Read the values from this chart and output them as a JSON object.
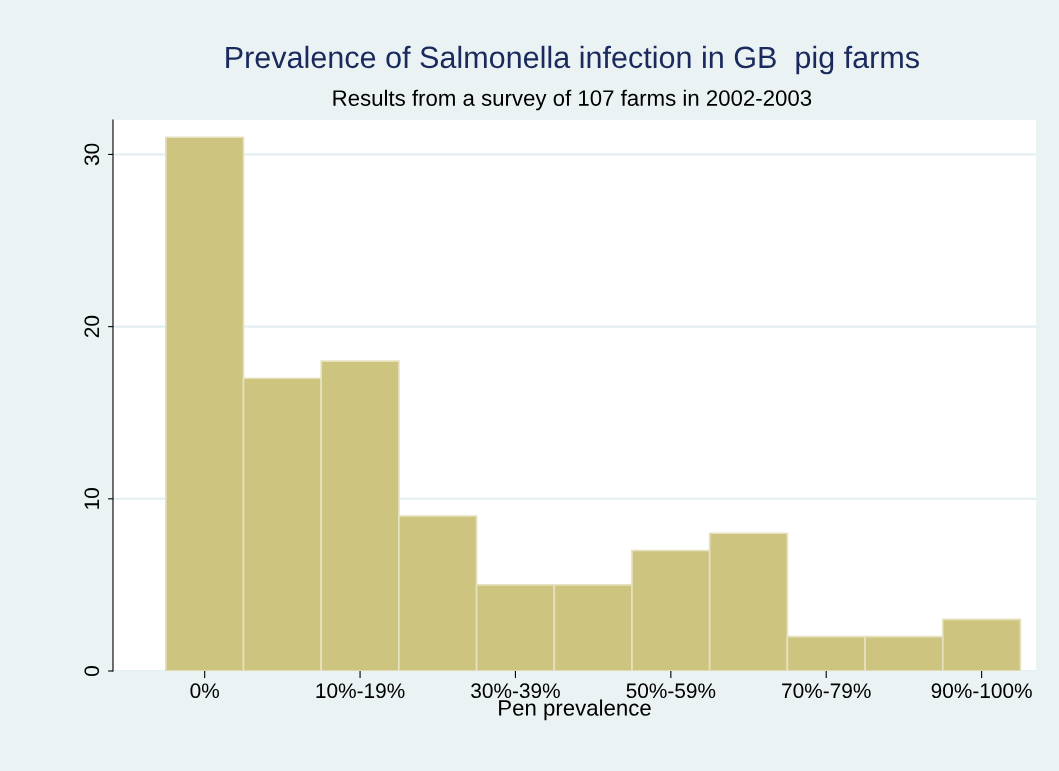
{
  "chart_data": {
    "type": "bar",
    "title": "Prevalence of Salmonella infection in GB  pig farms",
    "subtitle": "Results from a survey of 107 farms in 2002-2003",
    "xlabel": "Pen prevalence",
    "categories": [
      "0%",
      null,
      "10%-19%",
      null,
      "30%-39%",
      null,
      "50%-59%",
      null,
      "70%-79%",
      null,
      "90%-100%"
    ],
    "values": [
      31,
      17,
      18,
      9,
      5,
      5,
      7,
      8,
      2,
      2,
      3
    ],
    "color": "#cdc47f",
    "ylim": [
      0,
      32
    ],
    "yticks": [
      0,
      10,
      20,
      30
    ],
    "grid": "y"
  }
}
